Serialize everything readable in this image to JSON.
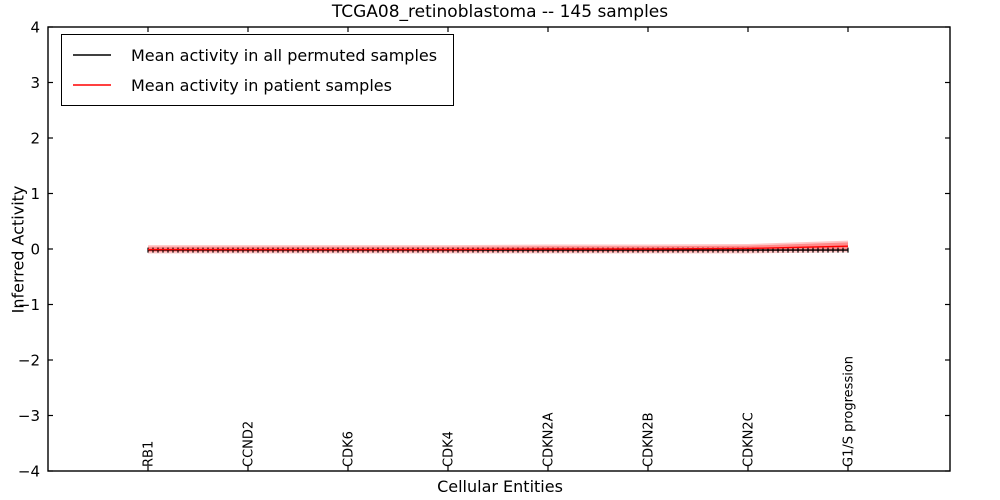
{
  "chart_data": {
    "type": "line",
    "title": "TCGA08_retinoblastoma -- 145 samples",
    "xlabel": "Cellular Entities",
    "ylabel": "Inferred Activity",
    "ylim": [
      -4,
      4
    ],
    "grid": false,
    "frame_color": "#000000",
    "background_color": "#ffffff",
    "yticks": [
      {
        "value": 4,
        "label": "4"
      },
      {
        "value": 3,
        "label": "3"
      },
      {
        "value": 2,
        "label": "2"
      },
      {
        "value": 1,
        "label": "1"
      },
      {
        "value": 0,
        "label": "0"
      },
      {
        "value": -1,
        "label": "−1"
      },
      {
        "value": -2,
        "label": "−2"
      },
      {
        "value": -3,
        "label": "−3"
      },
      {
        "value": -4,
        "label": "−4"
      }
    ],
    "categories": [
      "RB1",
      "CCND2",
      "CDK6",
      "CDK4",
      "CDKN2A",
      "CDKN2B",
      "CDKN2C",
      "G1/S progression"
    ],
    "series": [
      {
        "name": "Mean activity in all permuted samples",
        "color": "#000000",
        "marker": "|",
        "values": [
          -0.02,
          -0.02,
          -0.02,
          -0.02,
          -0.02,
          -0.02,
          -0.02,
          -0.02
        ]
      },
      {
        "name": "Mean activity in patient samples",
        "color": "#ff0000",
        "marker": "none",
        "values": [
          -0.01,
          -0.01,
          -0.01,
          -0.01,
          0.0,
          0.0,
          0.01,
          0.05
        ]
      }
    ],
    "bands": [
      {
        "name": "patient-spread-outer",
        "color": "rgba(255,0,0,0.22)",
        "upper": [
          0.07,
          0.07,
          0.07,
          0.07,
          0.08,
          0.08,
          0.09,
          0.15
        ],
        "lower": [
          -0.08,
          -0.08,
          -0.08,
          -0.08,
          -0.08,
          -0.08,
          -0.08,
          -0.06
        ]
      },
      {
        "name": "patient-spread-inner",
        "color": "rgba(255,0,0,0.30)",
        "upper": [
          0.04,
          0.04,
          0.04,
          0.04,
          0.05,
          0.05,
          0.06,
          0.12
        ],
        "lower": [
          -0.05,
          -0.05,
          -0.05,
          -0.05,
          -0.05,
          -0.05,
          -0.04,
          -0.03
        ]
      }
    ],
    "legend": {
      "position": "upper left",
      "entries": [
        "Mean activity in all permuted samples",
        "Mean activity in patient samples"
      ]
    }
  }
}
